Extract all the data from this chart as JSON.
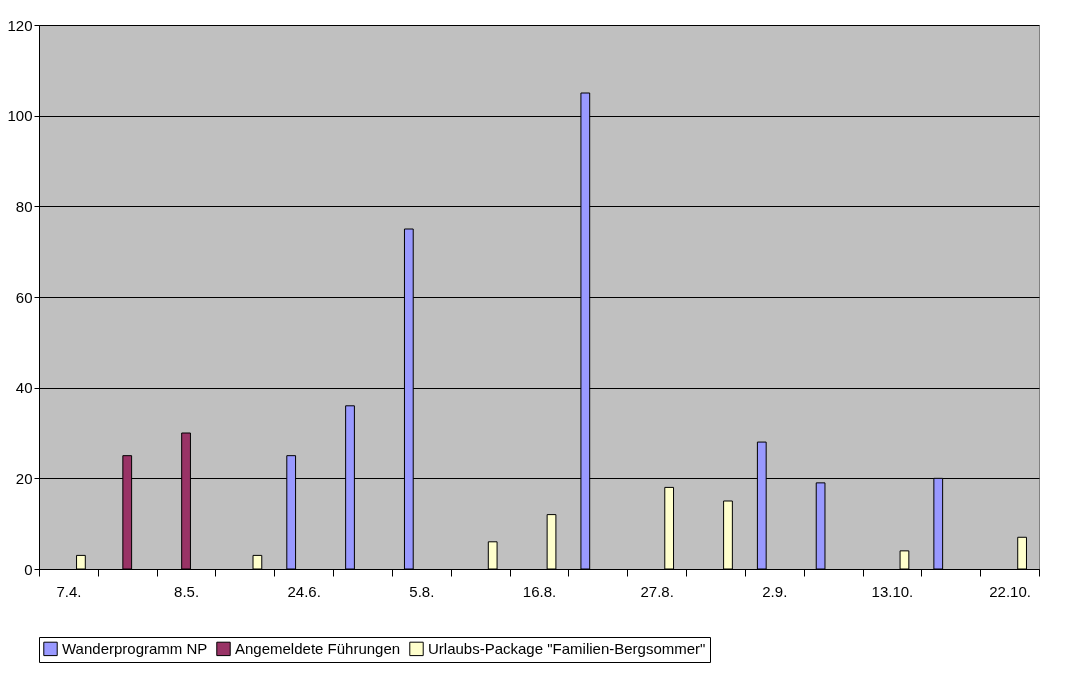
{
  "chart_data": {
    "type": "bar",
    "categories": [
      "7.4.",
      null,
      "8.5.",
      null,
      "24.6.",
      null,
      "5.8.",
      null,
      "16.8.",
      null,
      "27.8.",
      null,
      "2.9.",
      null,
      "13.10.",
      null,
      "22.10."
    ],
    "series": [
      {
        "name": "Wanderprogramm NP",
        "color": "#9999ff",
        "values": [
          null,
          null,
          null,
          null,
          25,
          36,
          75,
          null,
          null,
          105,
          null,
          null,
          28,
          19,
          null,
          20,
          null
        ]
      },
      {
        "name": "Angemeldete Führungen",
        "color": "#993366",
        "values": [
          null,
          25,
          30,
          null,
          null,
          null,
          null,
          null,
          null,
          null,
          null,
          null,
          null,
          null,
          null,
          null,
          null
        ]
      },
      {
        "name": "Urlaubs-Package \"Familien-Bergsommer\"",
        "color": "#ffffcc",
        "values": [
          3,
          null,
          null,
          3,
          null,
          null,
          null,
          6,
          12,
          null,
          18,
          15,
          null,
          null,
          4,
          null,
          7
        ]
      }
    ],
    "ylim": [
      0,
      120
    ],
    "yticks": [
      0,
      20,
      40,
      60,
      80,
      100,
      120
    ],
    "grid": "y",
    "legend": "bottom"
  }
}
